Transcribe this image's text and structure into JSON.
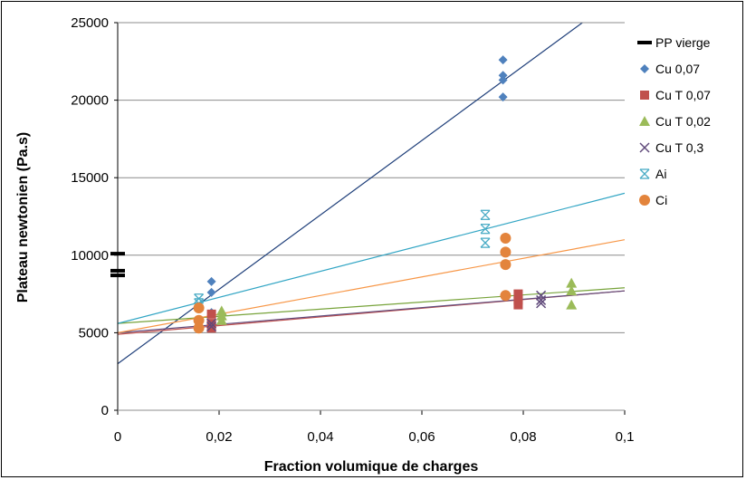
{
  "chart_data": {
    "type": "scatter",
    "xlabel": "Fraction volumique de charges",
    "ylabel": "Plateau newtonien (Pa.s)",
    "xlim": [
      0,
      0.1
    ],
    "ylim": [
      0,
      25000
    ],
    "x_ticks": [
      "0",
      "0,02",
      "0,04",
      "0,06",
      "0,08",
      "0,1"
    ],
    "y_ticks": [
      "0",
      "5000",
      "10000",
      "15000",
      "20000",
      "25000"
    ],
    "grid": "horizontal",
    "legend_position": "right",
    "series": [
      {
        "name": "PP vierge",
        "marker": "dash",
        "color": "#000000",
        "points": [
          [
            0,
            10100
          ],
          [
            0,
            9000
          ],
          [
            0,
            8700
          ]
        ]
      },
      {
        "name": "Cu 0,07",
        "marker": "diamond",
        "color": "#4F81BD",
        "points": [
          [
            0.0185,
            8300
          ],
          [
            0.0185,
            7600
          ],
          [
            0.0185,
            6300
          ],
          [
            0.076,
            22600
          ],
          [
            0.076,
            21600
          ],
          [
            0.076,
            21300
          ],
          [
            0.076,
            20200
          ]
        ],
        "fit": {
          "color": "#1F3F7A",
          "intercept": 3000,
          "slope": 240000
        }
      },
      {
        "name": "Cu T 0,07",
        "marker": "square",
        "color": "#C0504D",
        "points": [
          [
            0.0185,
            6200
          ],
          [
            0.0185,
            5600
          ],
          [
            0.0185,
            5300
          ],
          [
            0.079,
            7500
          ],
          [
            0.079,
            7100
          ],
          [
            0.079,
            6800
          ]
        ],
        "fit": {
          "color": "#C0504D",
          "intercept": 4900,
          "slope": 28000
        }
      },
      {
        "name": "Cu T 0,02",
        "marker": "triangle",
        "color": "#9BBB59",
        "points": [
          [
            0.0205,
            6400
          ],
          [
            0.0205,
            6100
          ],
          [
            0.0205,
            5800
          ],
          [
            0.0895,
            8200
          ],
          [
            0.0895,
            7700
          ],
          [
            0.0895,
            6800
          ]
        ],
        "fit": {
          "color": "#77A33A",
          "intercept": 5600,
          "slope": 23000
        }
      },
      {
        "name": "Cu T 0,3",
        "marker": "x",
        "color": "#604A7B",
        "points": [
          [
            0.0185,
            5600
          ],
          [
            0.0185,
            5400
          ],
          [
            0.0835,
            7400
          ],
          [
            0.0835,
            7100
          ],
          [
            0.0835,
            6900
          ]
        ],
        "fit": {
          "color": "#604A7B",
          "intercept": 5000,
          "slope": 27000
        }
      },
      {
        "name": "Ai",
        "marker": "asterisk",
        "color": "#4BACC6",
        "points": [
          [
            0.016,
            7200
          ],
          [
            0.016,
            6900
          ],
          [
            0.0725,
            12600
          ],
          [
            0.0725,
            11700
          ],
          [
            0.0725,
            10800
          ]
        ],
        "fit": {
          "color": "#31A5C4",
          "intercept": 5600,
          "slope": 84000
        }
      },
      {
        "name": "Ci",
        "marker": "circle",
        "color": "#E3843C",
        "points": [
          [
            0.016,
            6600
          ],
          [
            0.016,
            5800
          ],
          [
            0.016,
            5300
          ],
          [
            0.0765,
            11100
          ],
          [
            0.0765,
            10200
          ],
          [
            0.0765,
            9400
          ],
          [
            0.0765,
            7400
          ]
        ],
        "fit": {
          "color": "#F79646",
          "intercept": 5000,
          "slope": 60000
        }
      }
    ]
  }
}
